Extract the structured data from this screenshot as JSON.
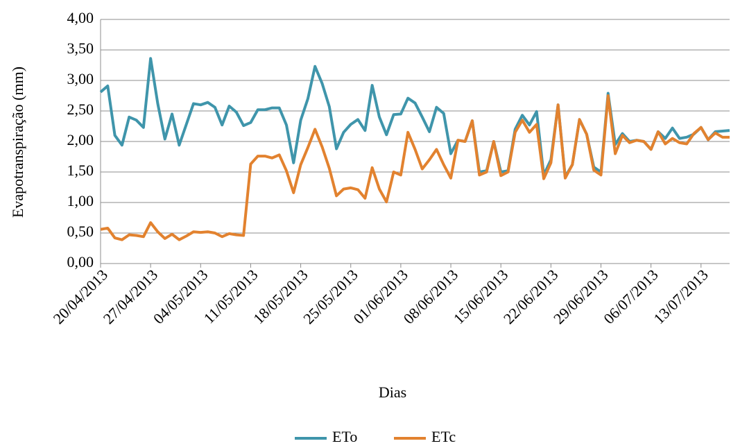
{
  "chart_data": {
    "type": "line",
    "x_label": "Dias",
    "y_label": "Evapotranspiração (mm)",
    "categories": [
      "20/04/2013",
      null,
      null,
      null,
      null,
      null,
      null,
      "27/04/2013",
      null,
      null,
      null,
      null,
      null,
      null,
      "04/05/2013",
      null,
      null,
      null,
      null,
      null,
      null,
      "11/05/2013",
      null,
      null,
      null,
      null,
      null,
      null,
      "18/05/2013",
      null,
      null,
      null,
      null,
      null,
      null,
      "25/05/2013",
      null,
      null,
      null,
      null,
      null,
      null,
      "01/06/2013",
      null,
      null,
      null,
      null,
      null,
      null,
      "08/06/2013",
      null,
      null,
      null,
      null,
      null,
      null,
      "15/06/2013",
      null,
      null,
      null,
      null,
      null,
      null,
      "22/06/2013",
      null,
      null,
      null,
      null,
      null,
      null,
      "29/06/2013",
      null,
      null,
      null,
      null,
      null,
      null,
      "06/07/2013",
      null,
      null,
      null,
      null,
      null,
      null,
      "13/07/2013",
      null,
      null,
      null,
      null
    ],
    "series": [
      {
        "name": "ETo",
        "color": "#3f95ab",
        "values": [
          2.81,
          2.91,
          2.1,
          1.94,
          2.4,
          2.35,
          2.23,
          3.36,
          2.62,
          2.04,
          2.45,
          1.94,
          2.28,
          2.62,
          2.6,
          2.64,
          2.56,
          2.27,
          2.58,
          2.48,
          2.26,
          2.31,
          2.52,
          2.52,
          2.55,
          2.55,
          2.27,
          1.65,
          2.35,
          2.7,
          3.23,
          2.95,
          2.57,
          1.88,
          2.15,
          2.28,
          2.36,
          2.18,
          2.92,
          2.4,
          2.11,
          2.44,
          2.45,
          2.71,
          2.63,
          2.4,
          2.16,
          2.56,
          2.46,
          1.8,
          2.02,
          2.0,
          2.34,
          1.5,
          1.52,
          2.0,
          1.5,
          1.52,
          2.2,
          2.43,
          2.27,
          2.49,
          1.45,
          1.7,
          2.6,
          1.42,
          1.62,
          2.36,
          2.12,
          1.58,
          1.5,
          2.79,
          1.95,
          2.13,
          2.0,
          2.02,
          2.0,
          1.87,
          2.16,
          2.05,
          2.22,
          2.05,
          2.07,
          2.12,
          2.23,
          2.03,
          2.16,
          2.17,
          2.18
        ]
      },
      {
        "name": "ETc",
        "color": "#e2822f",
        "values": [
          0.56,
          0.58,
          0.42,
          0.39,
          0.47,
          0.46,
          0.44,
          0.67,
          0.52,
          0.41,
          0.48,
          0.39,
          0.45,
          0.52,
          0.51,
          0.52,
          0.5,
          0.44,
          0.49,
          0.47,
          0.46,
          1.63,
          1.76,
          1.76,
          1.73,
          1.78,
          1.52,
          1.16,
          1.62,
          1.9,
          2.2,
          1.91,
          1.56,
          1.11,
          1.22,
          1.24,
          1.21,
          1.07,
          1.57,
          1.22,
          1.01,
          1.5,
          1.45,
          2.15,
          1.87,
          1.55,
          1.7,
          1.87,
          1.62,
          1.4,
          2.02,
          2.0,
          2.34,
          1.45,
          1.5,
          2.0,
          1.44,
          1.5,
          2.15,
          2.35,
          2.15,
          2.28,
          1.39,
          1.65,
          2.6,
          1.4,
          1.62,
          2.36,
          2.12,
          1.53,
          1.45,
          2.75,
          1.8,
          2.1,
          1.98,
          2.02,
          2.0,
          1.87,
          2.16,
          1.96,
          2.05,
          1.98,
          1.96,
          2.13,
          2.23,
          2.03,
          2.14,
          2.07,
          2.07
        ]
      }
    ],
    "ylim": [
      0,
      4
    ],
    "yticks": [
      {
        "value": 0,
        "label": "0,00"
      },
      {
        "value": 0.5,
        "label": "0,50"
      },
      {
        "value": 1,
        "label": "1,00"
      },
      {
        "value": 1.5,
        "label": "1,50"
      },
      {
        "value": 2,
        "label": "2,00"
      },
      {
        "value": 2.5,
        "label": "2,50"
      },
      {
        "value": 3,
        "label": "3,00"
      },
      {
        "value": 3.5,
        "label": "3,50"
      },
      {
        "value": 4,
        "label": "4,00"
      }
    ],
    "grid": true,
    "legend": "bottom"
  }
}
